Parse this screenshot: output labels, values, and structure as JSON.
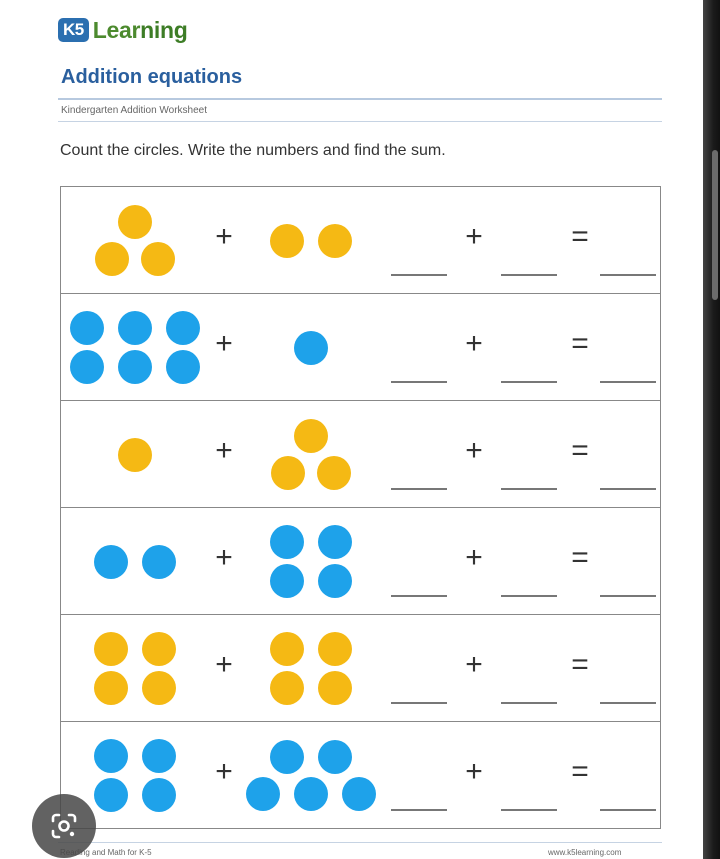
{
  "logo": {
    "badge": "K5",
    "text_prefix": "Lear",
    "text_suffix": "ning"
  },
  "title": "Addition equations",
  "subtitle": "Kindergarten Addition Worksheet",
  "instructions": "Count the circles. Write the numbers and find the sum.",
  "symbols": {
    "plus": "+",
    "equals": "="
  },
  "colors": {
    "yellow": "#f5b914",
    "blue": "#1ea2ea",
    "heading": "#2a5f9e"
  },
  "rows": [
    {
      "left": {
        "count": 3,
        "color": "yellow"
      },
      "right": {
        "count": 2,
        "color": "yellow"
      }
    },
    {
      "left": {
        "count": 6,
        "color": "blue"
      },
      "right": {
        "count": 1,
        "color": "blue"
      }
    },
    {
      "left": {
        "count": 1,
        "color": "yellow"
      },
      "right": {
        "count": 3,
        "color": "yellow"
      }
    },
    {
      "left": {
        "count": 2,
        "color": "blue"
      },
      "right": {
        "count": 4,
        "color": "blue"
      }
    },
    {
      "left": {
        "count": 4,
        "color": "yellow"
      },
      "right": {
        "count": 4,
        "color": "yellow"
      }
    },
    {
      "left": {
        "count": 4,
        "color": "blue"
      },
      "right": {
        "count": 5,
        "color": "blue"
      }
    }
  ],
  "footer": {
    "left": "Reading and Math for K-5",
    "right": "www.k5learning.com"
  }
}
